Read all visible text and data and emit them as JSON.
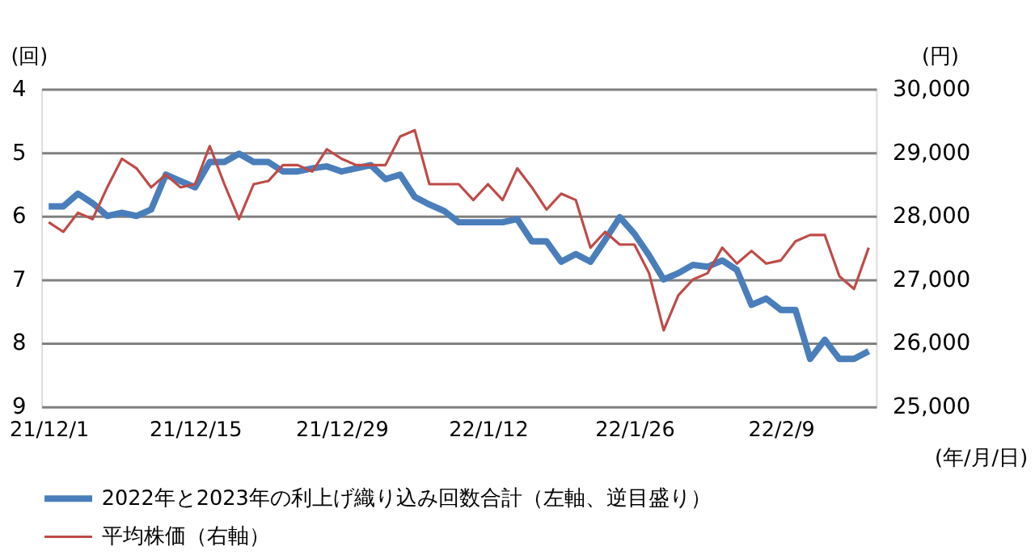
{
  "chart_data": {
    "type": "line",
    "categories": [
      "21/12/1",
      null,
      null,
      null,
      null,
      null,
      null,
      null,
      null,
      null,
      "21/12/15",
      null,
      null,
      null,
      null,
      null,
      null,
      null,
      null,
      null,
      "21/12/29",
      null,
      null,
      null,
      null,
      null,
      null,
      null,
      null,
      null,
      "22/1/12",
      null,
      null,
      null,
      null,
      null,
      null,
      null,
      null,
      null,
      "22/1/26",
      null,
      null,
      null,
      null,
      null,
      null,
      null,
      null,
      null,
      "22/2/9",
      null,
      null,
      null,
      null,
      null,
      null
    ],
    "series": [
      {
        "name": "2022年と2023年の利上げ織り込み回数合計（左軸、逆目盛り）",
        "color": "#4a7ebb",
        "values": [
          5.85,
          5.85,
          5.65,
          5.8,
          6.0,
          5.95,
          6.0,
          5.9,
          5.35,
          5.45,
          5.55,
          5.15,
          5.15,
          5.02,
          5.15,
          5.15,
          5.3,
          5.3,
          5.25,
          5.22,
          5.3,
          5.25,
          5.2,
          5.42,
          5.35,
          5.7,
          5.82,
          5.92,
          6.1,
          6.1,
          6.1,
          6.1,
          6.05,
          6.4,
          6.4,
          6.72,
          6.6,
          6.72,
          6.38,
          6.02,
          6.28,
          6.62,
          7.0,
          6.9,
          6.77,
          6.8,
          6.7,
          6.85,
          7.4,
          7.3,
          7.48,
          7.48,
          8.25,
          7.95,
          8.25,
          8.25,
          8.13
        ]
      },
      {
        "name": "平均株価（右軸）",
        "color": "#be4b48",
        "axis": "y2",
        "values": [
          27900,
          27750,
          28050,
          27950,
          28450,
          28900,
          28750,
          28450,
          28650,
          28450,
          28500,
          29100,
          28500,
          27950,
          28500,
          28550,
          28800,
          28800,
          28700,
          29050,
          28900,
          28800,
          28800,
          28800,
          29250,
          29350,
          28500,
          28500,
          28500,
          28250,
          28500,
          28250,
          28750,
          28450,
          28100,
          28350,
          28250,
          27500,
          27750,
          27550,
          27550,
          27100,
          26200,
          26750,
          27000,
          27100,
          27500,
          27250,
          27450,
          27250,
          27300,
          27600,
          27700,
          27700,
          27050,
          26850,
          27500
        ]
      }
    ],
    "ylim": [
      9,
      4
    ],
    "yticks": [
      4,
      5,
      6,
      7,
      8,
      9
    ],
    "y2lim": [
      25000,
      30000
    ],
    "y2ticks": [
      {
        "value": 25000,
        "label": "25,000"
      },
      {
        "value": 26000,
        "label": "26,000"
      },
      {
        "value": 27000,
        "label": "27,000"
      },
      {
        "value": 28000,
        "label": "28,000"
      },
      {
        "value": 29000,
        "label": "29,000"
      },
      {
        "value": 30000,
        "label": "30,000"
      }
    ],
    "ylabel": "(回)",
    "y2label": "(円)",
    "xlabel": "(年/月/日)",
    "grid": "y",
    "legend": "bottom",
    "line_style": "solid",
    "marker": "none"
  }
}
